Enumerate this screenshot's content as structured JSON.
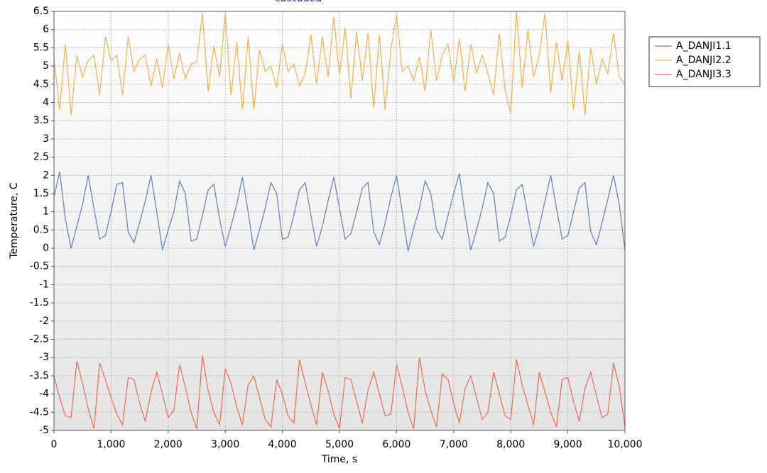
{
  "chart_data": {
    "type": "line",
    "title": "cascaded",
    "xlabel": "Time, s",
    "ylabel": "Temperature, C",
    "x": [
      0,
      100,
      200,
      300,
      400,
      500,
      600,
      700,
      800,
      900,
      1000,
      1100,
      1200,
      1300,
      1400,
      1500,
      1600,
      1700,
      1800,
      1900,
      2000,
      2100,
      2200,
      2300,
      2400,
      2500,
      2600,
      2700,
      2800,
      2900,
      3000,
      3100,
      3200,
      3300,
      3400,
      3500,
      3600,
      3700,
      3800,
      3900,
      4000,
      4100,
      4200,
      4300,
      4400,
      4500,
      4600,
      4700,
      4800,
      4900,
      5000,
      5100,
      5200,
      5300,
      5400,
      5500,
      5600,
      5700,
      5800,
      5900,
      6000,
      6100,
      6200,
      6300,
      6400,
      6500,
      6600,
      6700,
      6800,
      6900,
      7000,
      7100,
      7200,
      7300,
      7400,
      7500,
      7600,
      7700,
      7800,
      7900,
      8000,
      8100,
      8200,
      8300,
      8400,
      8500,
      8600,
      8700,
      8800,
      8900,
      9000,
      9100,
      9200,
      9300,
      9400,
      9500,
      9600,
      9700,
      9800,
      9900,
      10000
    ],
    "series": [
      {
        "name": "A_DANJI1.1",
        "color": "#5b7fbf",
        "values": [
          1.4,
          2.1,
          0.8,
          0,
          0.6,
          1.2,
          2.0,
          1.1,
          0.25,
          0.35,
          1.0,
          1.75,
          1.8,
          0.45,
          0.15,
          0.7,
          1.3,
          2.0,
          1.0,
          -0.05,
          0.5,
          1.0,
          1.85,
          1.5,
          0.2,
          0.25,
          0.9,
          1.6,
          1.75,
          0.8,
          0.05,
          0.6,
          1.2,
          1.95,
          1.0,
          -0.05,
          0.5,
          1.1,
          1.8,
          1.5,
          0.25,
          0.3,
          0.9,
          1.6,
          1.8,
          0.9,
          0.05,
          0.6,
          1.3,
          1.95,
          1.1,
          0.25,
          0.4,
          1.0,
          1.65,
          1.8,
          0.45,
          0.1,
          0.7,
          1.4,
          2.0,
          1.0,
          -0.08,
          0.55,
          1.1,
          1.85,
          1.5,
          0.5,
          0.25,
          0.9,
          1.5,
          2.05,
          0.9,
          -0.05,
          0.5,
          1.1,
          1.8,
          1.5,
          0.2,
          0.3,
          0.9,
          1.6,
          1.75,
          0.9,
          0.05,
          0.6,
          1.3,
          2.0,
          1.1,
          0.25,
          0.35,
          1.0,
          1.65,
          1.8,
          0.45,
          0.1,
          0.7,
          1.35,
          2.0,
          1.2,
          -0.05
        ]
      },
      {
        "name": "A_DANJI2.2",
        "color": "#f4b049",
        "values": [
          5.2,
          3.8,
          5.6,
          3.65,
          5.3,
          4.7,
          5.15,
          5.3,
          4.2,
          5.8,
          5.15,
          5.3,
          4.2,
          5.8,
          4.85,
          5.2,
          5.3,
          4.45,
          5.2,
          4.4,
          5.6,
          4.65,
          5.35,
          4.65,
          5.05,
          5.1,
          6.45,
          4.3,
          5.55,
          4.7,
          6.45,
          4.2,
          5.65,
          3.8,
          5.8,
          3.8,
          5.45,
          4.85,
          5.0,
          4.4,
          5.6,
          4.85,
          5.05,
          4.45,
          4.8,
          5.85,
          4.5,
          5.8,
          4.7,
          6.35,
          4.75,
          6.05,
          4.1,
          5.95,
          4.6,
          5.9,
          3.85,
          5.85,
          3.8,
          5.45,
          6.4,
          4.85,
          5.0,
          4.6,
          5.25,
          4.3,
          6.0,
          4.6,
          5.3,
          5.6,
          4.55,
          5.75,
          4.3,
          5.6,
          4.8,
          5.3,
          4.8,
          4.2,
          5.9,
          4.35,
          3.7,
          6.5,
          4.4,
          6.0,
          4.7,
          5.3,
          6.45,
          4.25,
          5.65,
          4.6,
          5.7,
          3.8,
          5.4,
          3.65,
          5.5,
          4.5,
          5.2,
          4.8,
          5.9,
          4.7,
          4.5
        ]
      },
      {
        "name": "A_DANJI3.3",
        "color": "#ee6a47",
        "values": [
          -3.5,
          -4.1,
          -4.6,
          -4.65,
          -3.1,
          -3.7,
          -4.4,
          -4.95,
          -3.15,
          -3.6,
          -4.1,
          -4.55,
          -4.85,
          -3.55,
          -3.6,
          -4.25,
          -4.75,
          -3.95,
          -3.4,
          -4.0,
          -4.65,
          -4.45,
          -3.2,
          -3.8,
          -4.5,
          -4.95,
          -2.95,
          -3.9,
          -4.5,
          -4.85,
          -3.3,
          -3.7,
          -4.35,
          -4.85,
          -3.75,
          -3.5,
          -4.1,
          -4.7,
          -4.9,
          -3.6,
          -4.0,
          -4.6,
          -4.8,
          -3.05,
          -3.7,
          -4.3,
          -4.85,
          -3.4,
          -3.9,
          -4.55,
          -4.95,
          -3.55,
          -3.6,
          -4.2,
          -4.8,
          -3.9,
          -3.4,
          -4.0,
          -4.6,
          -4.55,
          -3.2,
          -3.8,
          -4.5,
          -4.95,
          -3.0,
          -3.9,
          -4.45,
          -4.9,
          -3.45,
          -3.6,
          -4.25,
          -4.8,
          -3.85,
          -3.5,
          -4.1,
          -4.7,
          -4.5,
          -3.4,
          -4.0,
          -4.6,
          -4.7,
          -3.05,
          -3.75,
          -4.3,
          -4.85,
          -3.4,
          -3.95,
          -4.5,
          -4.9,
          -3.6,
          -3.55,
          -4.2,
          -4.75,
          -3.85,
          -3.4,
          -4.05,
          -4.65,
          -4.55,
          -3.15,
          -3.8,
          -4.9
        ]
      }
    ],
    "xlim": [
      0,
      10000
    ],
    "xticks": [
      0,
      {
        "value": 1000,
        "label": "1,000"
      },
      {
        "value": 2000,
        "label": "2,000"
      },
      {
        "value": 3000,
        "label": "3,000"
      },
      {
        "value": 4000,
        "label": "4,000"
      },
      {
        "value": 5000,
        "label": "5,000"
      },
      {
        "value": 6000,
        "label": "6,000"
      },
      {
        "value": 7000,
        "label": "7,000"
      },
      {
        "value": 8000,
        "label": "8,000"
      },
      {
        "value": 9000,
        "label": "9,000"
      },
      {
        "value": 10000,
        "label": "10,000"
      }
    ],
    "ylim": [
      -5,
      6.5
    ],
    "yticks": [
      -5,
      -4.5,
      -4,
      -3.5,
      -3,
      -2.5,
      -2,
      -1.5,
      -1,
      -0.5,
      0,
      0.5,
      1,
      1.5,
      2,
      2.5,
      3,
      3.5,
      4,
      4.5,
      5,
      5.5,
      6,
      6.5
    ],
    "grid": true,
    "legend": "upper right"
  }
}
